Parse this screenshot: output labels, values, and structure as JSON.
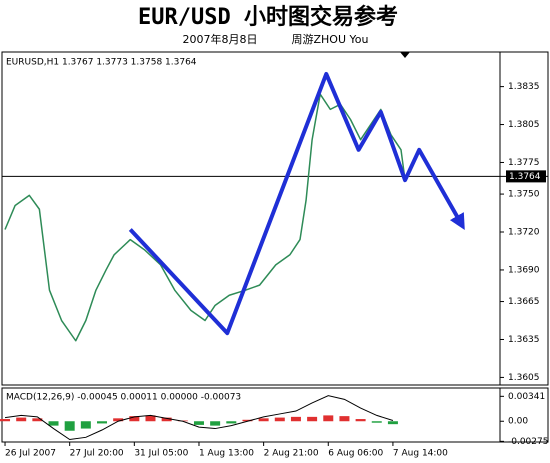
{
  "header": {
    "title": "EUR/USD 小时图交易参考",
    "date": "2007年8月8日",
    "author": "周游ZHOU You"
  },
  "chart_data": [
    {
      "type": "line",
      "label": "EURUSD,H1  1.3767 1.3773 1.3758 1.3764",
      "xlim": [
        -1.5,
        245
      ],
      "ylim": [
        1.3599,
        1.386
      ],
      "xticks": [
        {
          "value": 0,
          "label": "26 Jul 2007"
        },
        {
          "value": 32,
          "label": "27 Jul 20:00"
        },
        {
          "value": 64,
          "label": "31 Jul 05:00"
        },
        {
          "value": 96,
          "label": "1 Aug 13:00"
        },
        {
          "value": 128,
          "label": "2 Aug 21:00"
        },
        {
          "value": 160,
          "label": "6 Aug 06:00"
        },
        {
          "value": 192,
          "label": "7 Aug 14:00"
        }
      ],
      "yticks": [
        1.3605,
        1.3635,
        1.3665,
        {
          "value": 1.369,
          "label": "1.3690"
        },
        {
          "value": 1.372,
          "label": "1.3720"
        },
        {
          "value": 1.375,
          "label": "1.3750"
        },
        1.3775,
        1.3805,
        1.3835
      ],
      "current_price": 1.3764,
      "series": [
        {
          "color": "#2e8b57",
          "width": 1.5,
          "x": [
            0,
            5,
            12,
            17,
            22,
            28,
            35,
            40,
            45,
            50,
            54,
            62,
            69,
            77,
            84,
            92,
            99,
            104,
            111,
            119,
            126,
            134,
            141,
            146,
            149,
            152,
            156,
            161,
            166,
            171,
            176,
            181,
            186,
            191,
            196,
            198
          ],
          "values": [
            1.3722,
            1.3741,
            1.3749,
            1.3738,
            1.3674,
            1.365,
            1.3634,
            1.365,
            1.3674,
            1.369,
            1.3702,
            1.3714,
            1.3706,
            1.3694,
            1.3674,
            1.3658,
            1.365,
            1.3662,
            1.367,
            1.3674,
            1.3678,
            1.3694,
            1.3702,
            1.3714,
            1.3745,
            1.3793,
            1.3829,
            1.3817,
            1.3821,
            1.3809,
            1.3793,
            1.3805,
            1.3817,
            1.3797,
            1.3785,
            1.3761
          ]
        },
        {
          "color": "#1f2fd6",
          "width": 4,
          "arrow": true,
          "x": [
            62,
            110,
            159,
            175,
            186,
            198,
            205,
            226
          ],
          "values": [
            1.3722,
            1.364,
            1.3845,
            1.3785,
            1.3815,
            1.3761,
            1.3785,
            1.3726
          ]
        }
      ]
    },
    {
      "type": "macd",
      "label": "MACD(12,26,9) -0.00045 0.00011 0.00000 -0.00073",
      "xlim": [
        -1.5,
        245
      ],
      "ylim": [
        -0.00284,
        0.00455
      ],
      "yticks": [
        0.00341,
        {
          "value": 0,
          "label": "0.00"
        },
        -0.00275
      ],
      "positive_color": "#e03030",
      "negative_color": "#20a040",
      "x": [
        0,
        8,
        16,
        24,
        32,
        40,
        48,
        56,
        64,
        72,
        80,
        88,
        96,
        104,
        112,
        120,
        128,
        136,
        144,
        152,
        160,
        168,
        176,
        184,
        192
      ],
      "histogram": [
        0.0003,
        0.0005,
        0.0004,
        -0.0006,
        -0.0013,
        -0.001,
        -0.0003,
        0.0004,
        0.0007,
        0.0008,
        0.0005,
        0.0001,
        -0.0005,
        -0.0006,
        -0.0003,
        0.0002,
        0.0004,
        0.0005,
        0.0006,
        0.0006,
        0.0008,
        0.0007,
        0.0003,
        -0.0002,
        -0.0004
      ],
      "line": [
        0.0005,
        0.0008,
        0.0006,
        -0.001,
        -0.0025,
        -0.0022,
        -0.0012,
        0,
        0.0006,
        0.0008,
        0.0004,
        0,
        -0.0008,
        -0.001,
        -0.0006,
        0,
        0.0006,
        0.001,
        0.0014,
        0.0025,
        0.0035,
        0.003,
        0.0018,
        0.0008,
        0.0001
      ],
      "line_color": "#000000"
    }
  ]
}
